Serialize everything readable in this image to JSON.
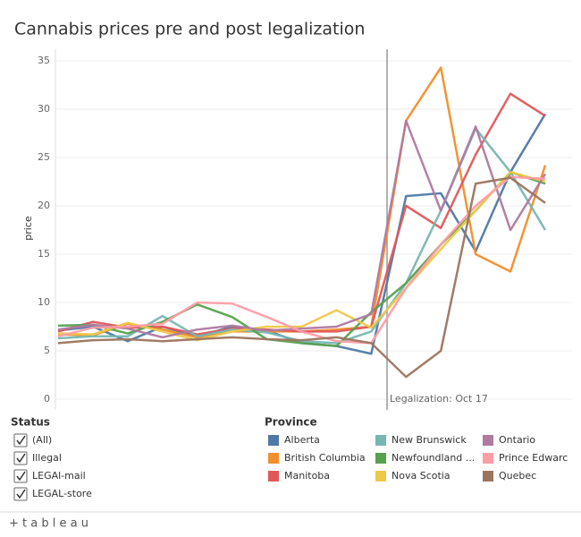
{
  "chart_data": {
    "type": "line",
    "title": "Cannabis prices pre and post legalization",
    "y_label": "price",
    "annotation": "Legalization: Oct 17",
    "categories": [
      null,
      null,
      null,
      null,
      null,
      null,
      null,
      null,
      null,
      null,
      null,
      null,
      null,
      null,
      null
    ],
    "ylim": [
      0,
      36.2
    ],
    "yticks": [
      0,
      5,
      10,
      15,
      20,
      25,
      30,
      35
    ],
    "grid": true,
    "legend_title": "Province",
    "series": [
      {
        "name": "Alberta",
        "color": "#4e79a7",
        "values": [
          7.1,
          7.5,
          6.0,
          7.5,
          6.5,
          7.5,
          7.1,
          5.8,
          5.5,
          4.7,
          21.0,
          21.3,
          15.3,
          23.5,
          29.5
        ]
      },
      {
        "name": "British Columbia",
        "color": "#f28e2b",
        "values": [
          6.7,
          6.6,
          7.8,
          7.2,
          6.4,
          7.0,
          7.0,
          7.0,
          7.2,
          7.5,
          28.8,
          34.3,
          15.0,
          13.2,
          24.2
        ]
      },
      {
        "name": "Manitoba",
        "color": "#e15759",
        "values": [
          7.0,
          8.0,
          7.4,
          7.5,
          6.7,
          7.3,
          7.2,
          7.0,
          7.0,
          7.5,
          20.0,
          17.7,
          25.3,
          31.6,
          29.3
        ]
      },
      {
        "name": "New Brunswick",
        "color": "#76b7b2",
        "values": [
          6.3,
          6.5,
          6.5,
          8.6,
          6.5,
          7.2,
          6.9,
          6.0,
          5.8,
          7.0,
          12.0,
          19.5,
          28.0,
          23.5,
          17.5
        ]
      },
      {
        "name": "Newfoundland ...",
        "color": "#59a14f",
        "values": [
          7.6,
          7.7,
          6.8,
          8.0,
          9.8,
          8.5,
          6.2,
          5.8,
          5.5,
          9.0,
          12.0,
          16.0,
          19.5,
          23.5,
          22.3
        ]
      },
      {
        "name": "Nova Scotia",
        "color": "#edc948",
        "values": [
          6.8,
          6.7,
          7.9,
          7.0,
          6.1,
          7.0,
          7.5,
          7.5,
          9.2,
          7.4,
          11.5,
          15.5,
          19.5,
          23.5,
          22.5
        ]
      },
      {
        "name": "Ontario",
        "color": "#b07aa1",
        "values": [
          7.2,
          7.7,
          7.3,
          6.4,
          7.2,
          7.6,
          7.1,
          7.3,
          7.5,
          8.8,
          28.8,
          19.5,
          28.2,
          17.5,
          23.3
        ]
      },
      {
        "name": "Prince Edwarc",
        "color": "#ff9da7",
        "values": [
          6.5,
          7.4,
          7.5,
          7.8,
          10.0,
          9.9,
          8.5,
          7.0,
          6.0,
          5.8,
          11.5,
          16.0,
          20.0,
          23.0,
          22.8
        ]
      },
      {
        "name": "Quebec",
        "color": "#9c755f",
        "values": [
          5.8,
          6.1,
          6.2,
          6.0,
          6.2,
          6.4,
          6.2,
          6.1,
          6.4,
          5.8,
          2.3,
          5.0,
          22.3,
          22.9,
          20.3
        ]
      }
    ]
  },
  "filter": {
    "title": "Status",
    "options": [
      "(All)",
      "Illegal",
      "LEGAl-mail",
      "LEGAL-store"
    ]
  },
  "footer": "+ t a b l e a u"
}
